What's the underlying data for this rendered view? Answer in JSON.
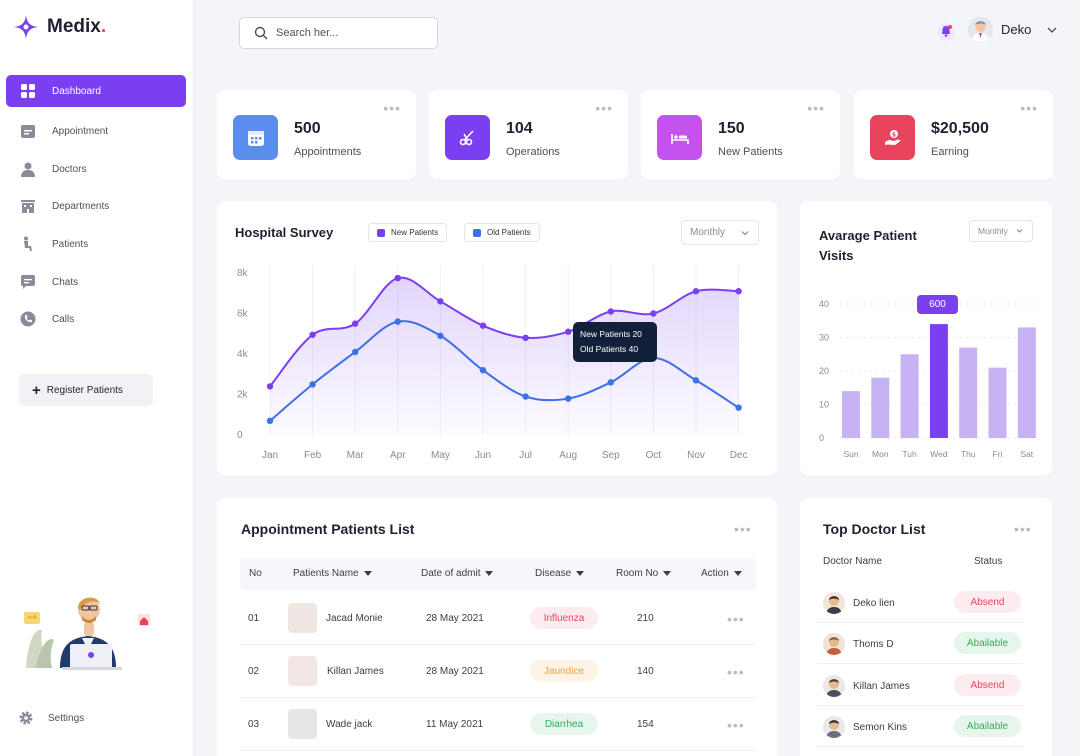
{
  "app": {
    "name": "Medix",
    "name_dot": "."
  },
  "sidebar": {
    "items": [
      {
        "label": "Dashboard",
        "icon": "grid-icon"
      },
      {
        "label": "Appointment",
        "icon": "calendar-icon"
      },
      {
        "label": "Doctors",
        "icon": "doctor-icon"
      },
      {
        "label": "Departments",
        "icon": "building-icon"
      },
      {
        "label": "Patients",
        "icon": "patient-icon"
      },
      {
        "label": "Chats",
        "icon": "chat-icon"
      },
      {
        "label": "Calls",
        "icon": "phone-icon"
      }
    ],
    "register_label": "Register Patients",
    "settings_label": "Settings"
  },
  "header": {
    "search_placeholder": "Search her...",
    "user_name": "Deko"
  },
  "stats": [
    {
      "value": "500",
      "label": "Appointments",
      "color": "#5b8def"
    },
    {
      "value": "104",
      "label": "Operations",
      "color": "#7b3ff2"
    },
    {
      "value": "150",
      "label": "New Patients",
      "color": "#c551ef"
    },
    {
      "value": "$20,500",
      "label": "Earning",
      "color": "#e8445d"
    }
  ],
  "survey": {
    "title": "Hospital Survey",
    "legend_new": "New Patients",
    "legend_old": "Old Patients",
    "select": "Monthly",
    "tooltip_new": "New Patients 20",
    "tooltip_old": "Old Patients 40"
  },
  "visits": {
    "title_line1": "Avarage Patient",
    "title_line2": "Visits",
    "select": "Monthly",
    "highlight_label": "600"
  },
  "chart_data": [
    {
      "type": "line",
      "title": "Hospital Survey",
      "categories": [
        "Jan",
        "Feb",
        "Mar",
        "Apr",
        "May",
        "Jun",
        "Jul",
        "Aug",
        "Sep",
        "Oct",
        "Nov",
        "Dec"
      ],
      "y_ticks": [
        "8k",
        "6k",
        "4k",
        "2k",
        "0"
      ],
      "ylim": [
        0,
        8000
      ],
      "series": [
        {
          "name": "New Patients",
          "color": "#7b3ff2",
          "values": [
            2400,
            4950,
            5500,
            7750,
            6600,
            5400,
            4800,
            5100,
            6100,
            6000,
            7100,
            7100
          ]
        },
        {
          "name": "Old Patients",
          "color": "#3d6fe6",
          "values": [
            700,
            2500,
            4100,
            5600,
            4900,
            3200,
            1900,
            1800,
            2600,
            3800,
            2700,
            1350
          ]
        }
      ]
    },
    {
      "type": "bar",
      "title": "Avarage Patient Visits",
      "categories": [
        "Sun",
        "Mon",
        "Tuh",
        "Wed",
        "Thu",
        "Fri",
        "Sat"
      ],
      "values": [
        14,
        18,
        25,
        34,
        27,
        21,
        33
      ],
      "highlight_index": 3,
      "y_ticks": [
        "40",
        "30",
        "20",
        "10",
        "0"
      ],
      "ylim": [
        0,
        40
      ]
    }
  ],
  "appointments": {
    "title": "Appointment Patients List",
    "columns": [
      "No",
      "Patients Name",
      "Date of admit",
      "Disease",
      "Room No",
      "Action"
    ],
    "rows": [
      {
        "no": "01",
        "name": "Jacad Monie",
        "date": "28 May 2021",
        "disease": "Influenza",
        "room": "210",
        "disease_color": "#e8445d",
        "disease_bg": "#fdecef"
      },
      {
        "no": "02",
        "name": "Killan James",
        "date": "28 May 2021",
        "disease": "Jaundice",
        "room": "140",
        "disease_color": "#f0a04b",
        "disease_bg": "#fdf3e7"
      },
      {
        "no": "03",
        "name": "Wade jack",
        "date": "11 May 2021",
        "disease": "Diarrhea",
        "room": "154",
        "disease_color": "#2fae5b",
        "disease_bg": "#e7f6ec"
      }
    ]
  },
  "doctors": {
    "title": "Top Doctor List",
    "col_name": "Doctor Name",
    "col_status": "Status",
    "rows": [
      {
        "name": "Deko lien",
        "status": "Absend",
        "color": "#e8445d",
        "bg": "#fdecef"
      },
      {
        "name": "Thoms D",
        "status": "Abailable",
        "color": "#2fae5b",
        "bg": "#e7f6ec"
      },
      {
        "name": "Killan James",
        "status": "Absend",
        "color": "#e8445d",
        "bg": "#fdecef"
      },
      {
        "name": "Semon Kins",
        "status": "Abailable",
        "color": "#2fae5b",
        "bg": "#e7f6ec"
      }
    ]
  },
  "colors": {
    "accent": "#7b3ff2",
    "blue": "#3d6fe6",
    "bar_light": "#c7b2f4"
  }
}
